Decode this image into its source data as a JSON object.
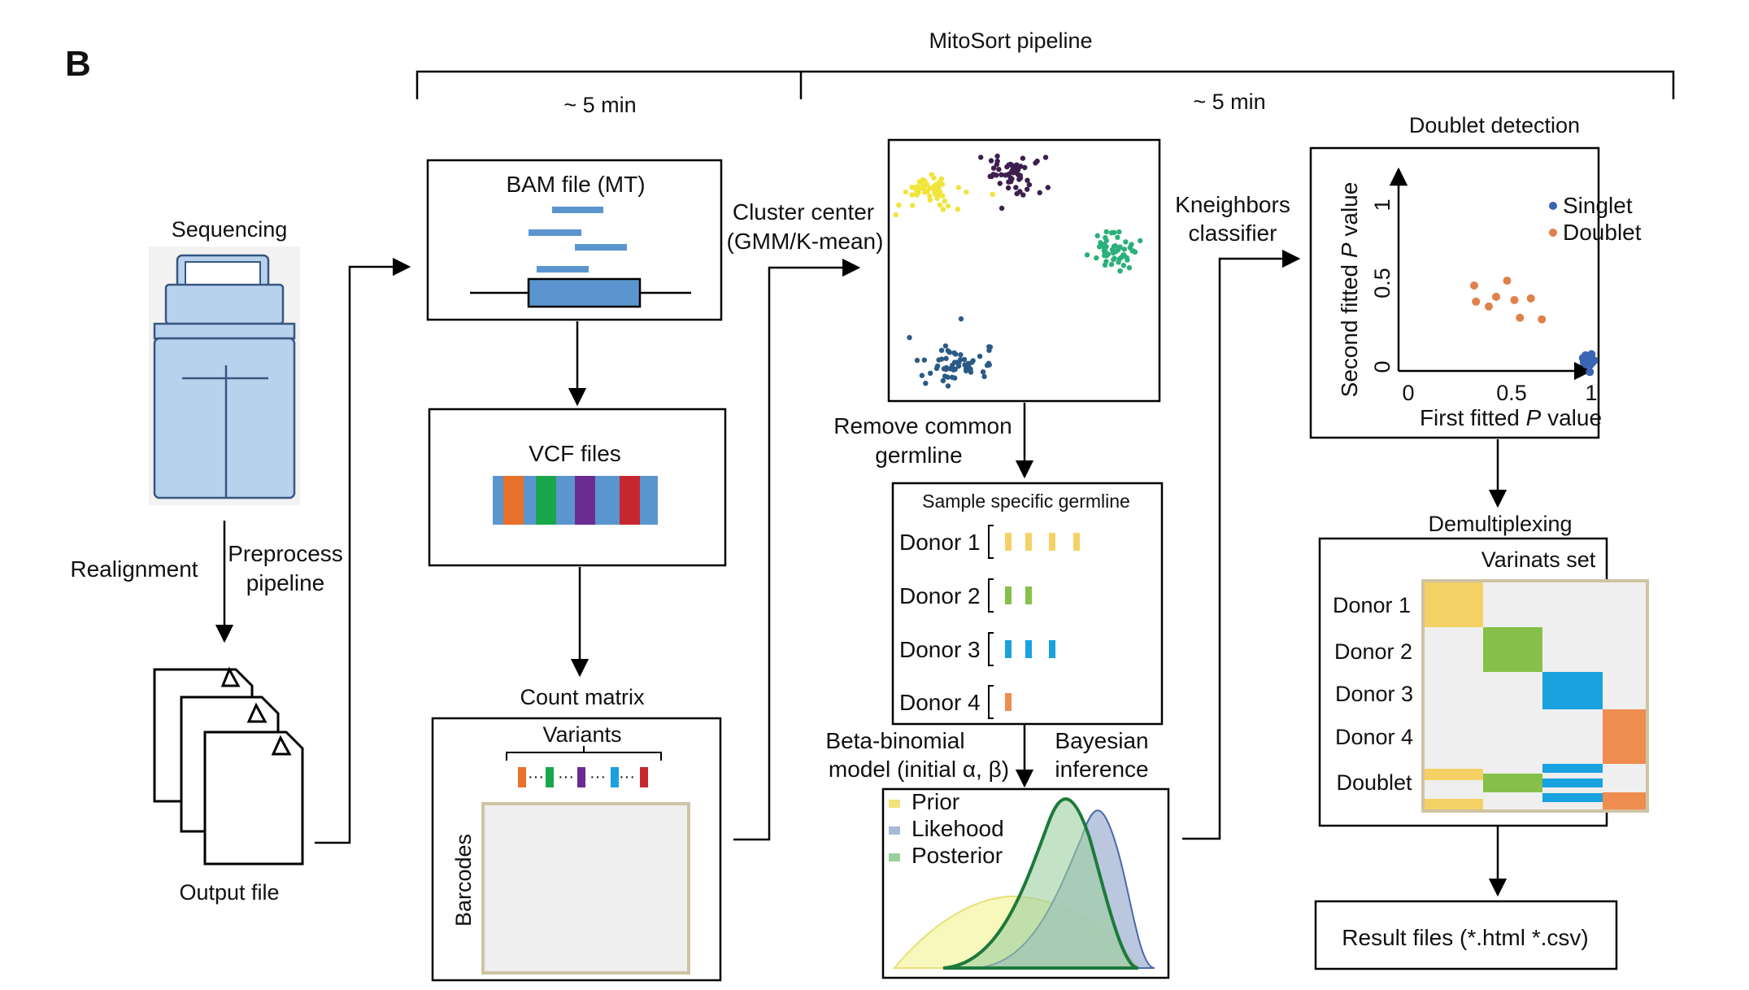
{
  "panel_label": "B",
  "pipeline": {
    "title": "MitoSort pipeline",
    "time_left": "~ 5 min",
    "time_right": "~ 5 min"
  },
  "preprocess": {
    "sequencing_label": "Sequencing",
    "realignment_label": "Realignment",
    "preprocess_line1": "Preprocess",
    "preprocess_line2": "pipeline",
    "output_label": "Output file"
  },
  "bam": {
    "label": "BAM file (MT)"
  },
  "vcf": {
    "label": "VCF files"
  },
  "count_matrix": {
    "title": "Count matrix",
    "variants_label": "Variants",
    "barcodes_label": "Barcodes",
    "dots": "···"
  },
  "cluster": {
    "line1": "Cluster center",
    "line2": "(GMM/K-mean)"
  },
  "germline": {
    "remove_line1": "Remove common",
    "remove_line2": "germline",
    "box_title": "Sample specific germline",
    "donors": [
      "Donor 1",
      "Donor 2",
      "Donor 3",
      "Donor 4"
    ]
  },
  "model": {
    "beta_line1": "Beta-binomial",
    "beta_line2": "model (initial α, β)",
    "bayes_line1": "Bayesian",
    "bayes_line2": "inference",
    "legend": [
      "Prior",
      "Likehood",
      "Posterior"
    ]
  },
  "knn": {
    "line1": "Kneighbors",
    "line2": "classifier"
  },
  "doublet": {
    "title": "Doublet detection",
    "ylabel_prefix": "Second fitted ",
    "ylabel_var": "P",
    "ylabel_suffix": " value",
    "xlabel_prefix": "First fitted ",
    "xlabel_var": "P",
    "xlabel_suffix": " value",
    "xticks": [
      "0",
      "0.5",
      "1"
    ],
    "yticks": [
      "0",
      "0.5",
      "1"
    ],
    "legend": [
      "Singlet",
      "Doublet"
    ]
  },
  "demux": {
    "title": "Demultiplexing",
    "set_label": "Varinats set",
    "rows": [
      "Donor 1",
      "Donor 2",
      "Donor 3",
      "Donor 4",
      "Doublet"
    ]
  },
  "result": {
    "label": "Result files (*.html *.csv)"
  },
  "colors": {
    "yellow": "#f5d165",
    "green": "#86c04a",
    "blue": "#1aa1e0",
    "orange": "#ef8c4f",
    "bam_blue": "#5b95cf",
    "cluster_yellow": "#f1e43a",
    "cluster_purple": "#3d1e4e",
    "cluster_green": "#2bb07a",
    "cluster_navy": "#2b5a86",
    "singlet": "#3c64b4",
    "doublet": "#e0804a"
  }
}
